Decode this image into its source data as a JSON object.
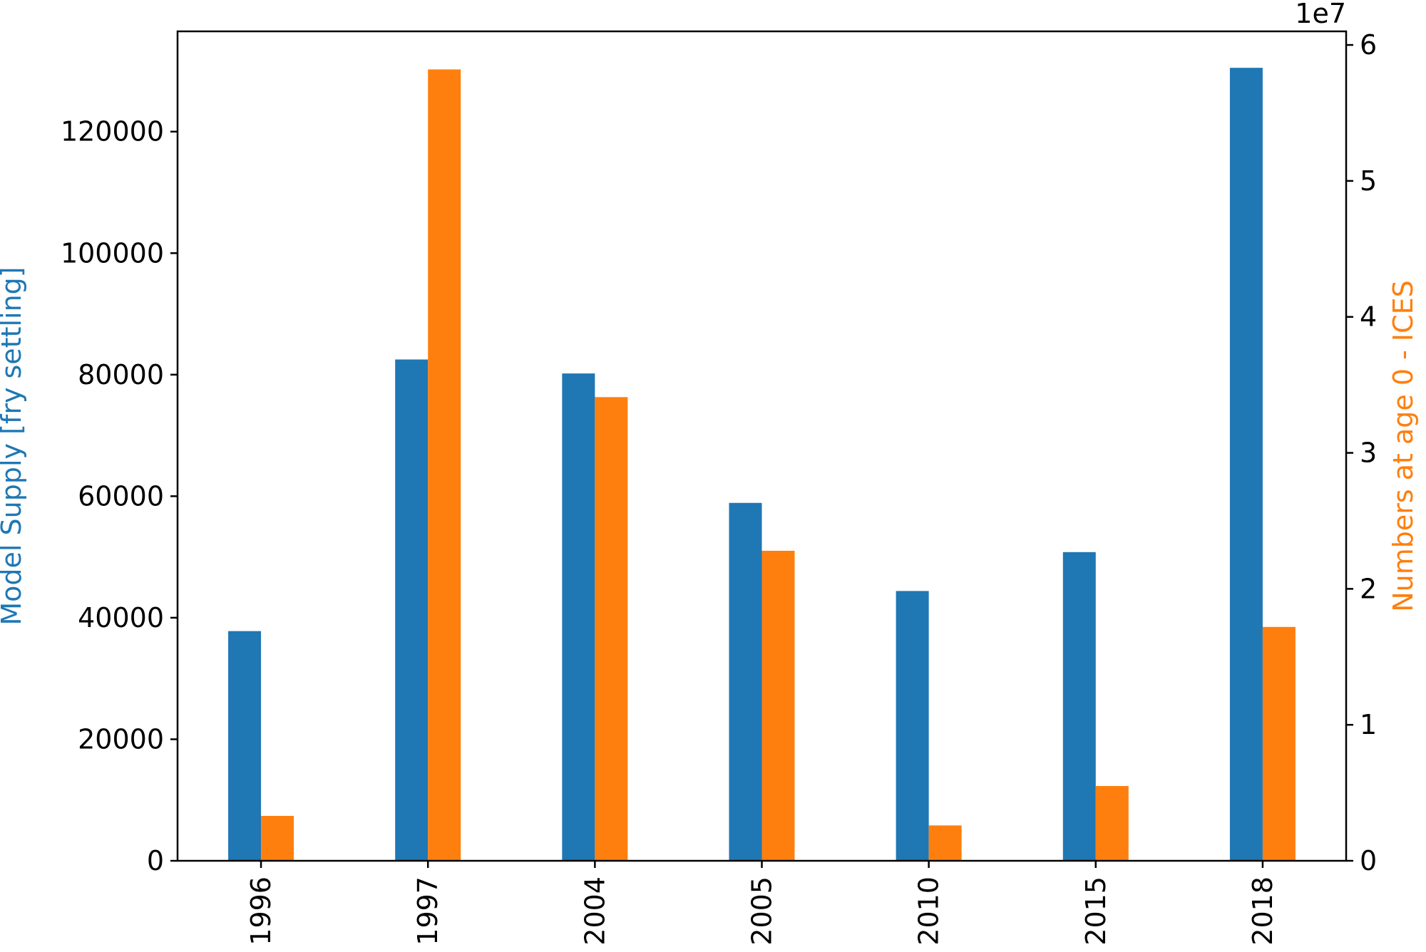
{
  "chart_data": {
    "type": "bar",
    "categories": [
      "1996",
      "1997",
      "2004",
      "2005",
      "2010",
      "2015",
      "2018"
    ],
    "series": [
      {
        "axis": "left",
        "values": [
          37800,
          82500,
          80200,
          58900,
          44400,
          50800,
          130500
        ],
        "color": "#1f77b4"
      },
      {
        "axis": "right",
        "values": [
          3300000,
          58200000,
          34100000,
          22800000,
          2600000,
          5500000,
          17200000
        ],
        "color": "#ff7f0e"
      }
    ],
    "ylabel": "Model Supply [fry settling]",
    "ylabel_right": "Numbers at age 0 - ICES",
    "ylabel_color": "#1f77b4",
    "ylabel_right_color": "#ff7f0e",
    "ylim": [
      0,
      136500
    ],
    "ylim_right": [
      0,
      61000000
    ],
    "yticks": [
      0,
      20000,
      40000,
      60000,
      80000,
      100000,
      120000
    ],
    "yticks_right": [
      0,
      10000000,
      20000000,
      30000000,
      40000000,
      50000000,
      60000000
    ],
    "ytick_labels_right": [
      "0",
      "1",
      "2",
      "3",
      "4",
      "5",
      "6"
    ],
    "right_axis_offset_text": "1e7",
    "grid": false
  }
}
